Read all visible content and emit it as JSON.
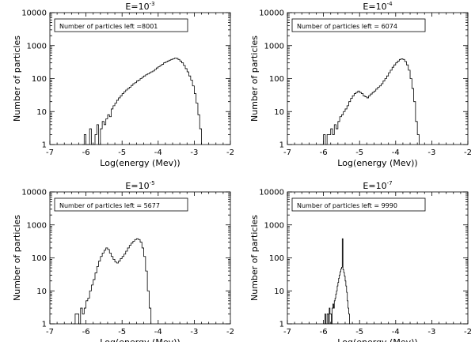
{
  "chart_data": [
    {
      "type": "histogram",
      "title_prefix": "E=10",
      "title_exp": "-3",
      "legend": "Number of particles left =8001",
      "xlabel": "Log(energy (Mev))",
      "ylabel": "Number of particles",
      "xlim": [
        -7,
        -2
      ],
      "ylim": [
        1,
        10000
      ],
      "yscale": "log",
      "xticks": [
        "-7",
        "-6",
        "-5",
        "-4",
        "-3",
        "-2"
      ],
      "yticks": [
        "1",
        "10",
        "100",
        "1000",
        "10000"
      ],
      "bin_start": -6.1,
      "bin_width": 0.05,
      "values": [
        1,
        2,
        1,
        1,
        3,
        1,
        1,
        2,
        4,
        1,
        3,
        5,
        4,
        6,
        8,
        7,
        12,
        15,
        18,
        22,
        26,
        30,
        35,
        40,
        45,
        50,
        55,
        62,
        70,
        75,
        85,
        90,
        100,
        110,
        120,
        130,
        140,
        150,
        160,
        170,
        190,
        210,
        230,
        250,
        270,
        300,
        320,
        340,
        360,
        380,
        400,
        420,
        410,
        380,
        340,
        300,
        250,
        200,
        160,
        120,
        90,
        60,
        35,
        18,
        8,
        3
      ]
    },
    {
      "type": "histogram",
      "title_prefix": "E=10",
      "title_exp": "-4",
      "legend": "Number of particles left = 6074",
      "xlabel": "Log(energy (Mev))",
      "ylabel": "Number of particles",
      "xlim": [
        -7,
        -2
      ],
      "ylim": [
        1,
        10000
      ],
      "yscale": "log",
      "xticks": [
        "-7",
        "-6",
        "-5",
        "-4",
        "-3",
        "-2"
      ],
      "yticks": [
        "1",
        "10",
        "100",
        "1000",
        "10000"
      ],
      "bin_start": -6.1,
      "bin_width": 0.05,
      "values": [
        1,
        1,
        2,
        1,
        2,
        2,
        3,
        2,
        4,
        3,
        5,
        7,
        8,
        10,
        12,
        15,
        20,
        25,
        30,
        35,
        38,
        42,
        38,
        35,
        30,
        28,
        26,
        30,
        34,
        38,
        42,
        48,
        55,
        60,
        70,
        85,
        100,
        120,
        150,
        180,
        220,
        260,
        300,
        340,
        380,
        400,
        380,
        330,
        260,
        180,
        100,
        50,
        20,
        5,
        2
      ]
    },
    {
      "type": "histogram",
      "title_prefix": "E=10",
      "title_exp": "-5",
      "legend": "Number of particles left = 5677",
      "xlabel": "Log(energy (Mev))",
      "ylabel": "Number of particles",
      "xlim": [
        -7,
        -2
      ],
      "ylim": [
        1,
        10000
      ],
      "yscale": "log",
      "xticks": [
        "-7",
        "-6",
        "-5",
        "-4",
        "-3",
        "-2"
      ],
      "yticks": [
        "1",
        "10",
        "100",
        "1000",
        "10000"
      ],
      "bin_start": -6.35,
      "bin_width": 0.05,
      "values": [
        1,
        2,
        2,
        1,
        3,
        2,
        3,
        5,
        6,
        10,
        15,
        22,
        35,
        55,
        80,
        110,
        140,
        170,
        200,
        180,
        140,
        110,
        90,
        75,
        70,
        80,
        95,
        110,
        130,
        160,
        200,
        240,
        280,
        320,
        360,
        380,
        360,
        300,
        200,
        110,
        40,
        10,
        3
      ]
    },
    {
      "type": "histogram",
      "title_prefix": "E=10",
      "title_exp": "-7",
      "legend": "Number of particles left = 9990",
      "xlabel": "Log(energy (Mev))",
      "ylabel": "Number of particles",
      "xlim": [
        -7,
        -2
      ],
      "ylim": [
        1,
        10000
      ],
      "yscale": "log",
      "xticks": [
        "-7",
        "-6",
        "-5",
        "-4",
        "-3",
        "-2"
      ],
      "yticks": [
        "1",
        "10",
        "100",
        "1000",
        "10000"
      ],
      "bin_start": -6.0,
      "bin_width": 0.02,
      "values": [
        1,
        1,
        2,
        1,
        1,
        2,
        2,
        1,
        3,
        2,
        2,
        1,
        3,
        4,
        3,
        5,
        6,
        8,
        10,
        14,
        18,
        24,
        30,
        38,
        46,
        52,
        380,
        44,
        36,
        28,
        20,
        14,
        9,
        5,
        3,
        2,
        1
      ]
    }
  ]
}
